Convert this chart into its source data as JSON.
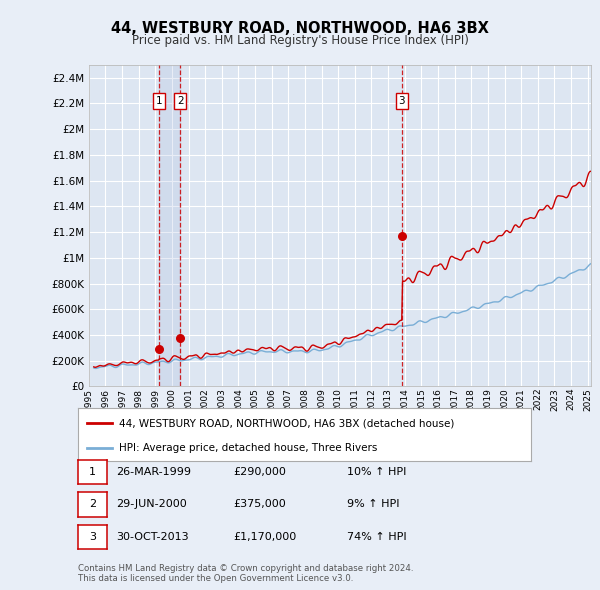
{
  "title": "44, WESTBURY ROAD, NORTHWOOD, HA6 3BX",
  "subtitle": "Price paid vs. HM Land Registry's House Price Index (HPI)",
  "bg_color": "#e8eef7",
  "plot_bg_color": "#dde6f2",
  "grid_color": "#ffffff",
  "sale_color": "#cc0000",
  "hpi_color": "#7aaed6",
  "vline_color": "#cc0000",
  "annotation_box_color": "#cc0000",
  "ytick_values": [
    0,
    200000,
    400000,
    600000,
    800000,
    1000000,
    1200000,
    1400000,
    1600000,
    1800000,
    2000000,
    2200000,
    2400000
  ],
  "ylim": [
    0,
    2500000
  ],
  "xlim_start": 1995.3,
  "xlim_end": 2025.2,
  "sales": [
    {
      "date": 1999.23,
      "price": 290000,
      "label": "1"
    },
    {
      "date": 2000.49,
      "price": 375000,
      "label": "2"
    },
    {
      "date": 2013.83,
      "price": 1170000,
      "label": "3"
    }
  ],
  "legend_sale_label": "44, WESTBURY ROAD, NORTHWOOD, HA6 3BX (detached house)",
  "legend_hpi_label": "HPI: Average price, detached house, Three Rivers",
  "table_rows": [
    {
      "num": "1",
      "date": "26-MAR-1999",
      "price": "£290,000",
      "change": "10% ↑ HPI"
    },
    {
      "num": "2",
      "date": "29-JUN-2000",
      "price": "£375,000",
      "change": "9% ↑ HPI"
    },
    {
      "num": "3",
      "date": "30-OCT-2013",
      "price": "£1,170,000",
      "change": "74% ↑ HPI"
    }
  ],
  "footer": "Contains HM Land Registry data © Crown copyright and database right 2024.\nThis data is licensed under the Open Government Licence v3.0."
}
